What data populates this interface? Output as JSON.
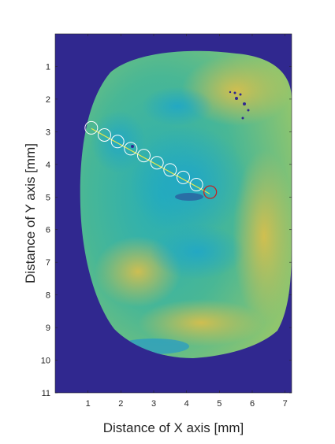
{
  "chart_data": {
    "type": "heatmap",
    "title": "",
    "xlabel": "Distance of X axis [mm]",
    "ylabel": "Distance of Y axis [mm]",
    "xlim": [
      0,
      7.2
    ],
    "ylim": [
      0,
      11
    ],
    "y_reversed": true,
    "xticks": [
      "1",
      "2",
      "3",
      "4",
      "5",
      "6",
      "7"
    ],
    "yticks": [
      "1",
      "2",
      "3",
      "4",
      "5",
      "6",
      "7",
      "8",
      "9",
      "10",
      "11"
    ],
    "grid": false,
    "colors": {
      "background": "#30288f",
      "tissue_main": "#2fb1a6",
      "tissue_light": "#8cc472",
      "tissue_warm": "#d9bd4c",
      "tissue_cool": "#23a7c4",
      "scan_line": "#e6e84a",
      "marker": "#ffffff",
      "end_marker": "#cc1b1b"
    },
    "scan_path": {
      "start": [
        1.1,
        2.9
      ],
      "end": [
        4.7,
        4.9
      ]
    },
    "markers": [
      {
        "x": 1.1,
        "y": 2.88
      },
      {
        "x": 1.5,
        "y": 3.1
      },
      {
        "x": 1.9,
        "y": 3.3
      },
      {
        "x": 2.3,
        "y": 3.52
      },
      {
        "x": 2.7,
        "y": 3.73
      },
      {
        "x": 3.1,
        "y": 3.95
      },
      {
        "x": 3.5,
        "y": 4.17
      },
      {
        "x": 3.9,
        "y": 4.4
      },
      {
        "x": 4.3,
        "y": 4.62
      }
    ],
    "end_marker": {
      "x": 4.72,
      "y": 4.85
    }
  }
}
